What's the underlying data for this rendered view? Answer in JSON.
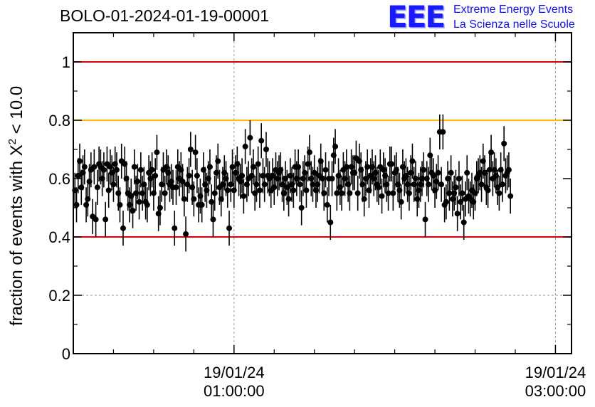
{
  "header": {
    "title": "BOLO-01-2024-01-19-00001"
  },
  "logo": {
    "mark": "EEE",
    "line1": "Extreme Energy Events",
    "line2": "La Scienza nelle Scuole",
    "color": "#1a1aff"
  },
  "chart_data": {
    "type": "scatter",
    "title": "BOLO-01-2024-01-19-00001",
    "ylabel_parts": [
      "fraction of events with X",
      "2",
      " < 10.0"
    ],
    "xlabel": "",
    "x_unit": "hours since 19/01/24 00:00:00",
    "xlim": [
      0,
      3.1
    ],
    "ylim": [
      0,
      1.1
    ],
    "yticks": [
      0,
      0.2,
      0.4,
      0.6,
      0.8,
      1
    ],
    "ytick_labels": [
      "0",
      "0.2",
      "0.4",
      "0.6",
      "0.8",
      "1"
    ],
    "xtick_majors": [
      {
        "x": 1,
        "date": "19/01/24",
        "time": "01:00:00"
      },
      {
        "x": 3,
        "date": "19/01/24",
        "time": "03:00:00"
      }
    ],
    "xtick_minor_step": 0.25,
    "grid": {
      "y": [
        0.2
      ],
      "x": [
        1,
        3
      ],
      "color": "#999999",
      "style": "dotted"
    },
    "reference_lines": [
      {
        "y": 1.0,
        "color": "#dd0000"
      },
      {
        "y": 0.8,
        "color": "#ffbb00"
      },
      {
        "y": 0.4,
        "color": "#dd0000"
      }
    ],
    "series": [
      {
        "marker_color": "#000000",
        "errorbar": 0.06,
        "points": [
          [
            0.01,
            0.56
          ],
          [
            0.02,
            0.51
          ],
          [
            0.03,
            0.61
          ],
          [
            0.04,
            0.66
          ],
          [
            0.05,
            0.57
          ],
          [
            0.06,
            0.62
          ],
          [
            0.07,
            0.64
          ],
          [
            0.08,
            0.51
          ],
          [
            0.09,
            0.53
          ],
          [
            0.1,
            0.59
          ],
          [
            0.11,
            0.63
          ],
          [
            0.12,
            0.47
          ],
          [
            0.13,
            0.64
          ],
          [
            0.14,
            0.46
          ],
          [
            0.15,
            0.57
          ],
          [
            0.16,
            0.65
          ],
          [
            0.17,
            0.64
          ],
          [
            0.18,
            0.6
          ],
          [
            0.19,
            0.63
          ],
          [
            0.2,
            0.46
          ],
          [
            0.21,
            0.65
          ],
          [
            0.22,
            0.56
          ],
          [
            0.23,
            0.64
          ],
          [
            0.24,
            0.62
          ],
          [
            0.25,
            0.58
          ],
          [
            0.26,
            0.65
          ],
          [
            0.27,
            0.63
          ],
          [
            0.28,
            0.55
          ],
          [
            0.29,
            0.51
          ],
          [
            0.3,
            0.66
          ],
          [
            0.31,
            0.43
          ],
          [
            0.32,
            0.65
          ],
          [
            0.33,
            0.6
          ],
          [
            0.34,
            0.55
          ],
          [
            0.35,
            0.51
          ],
          [
            0.36,
            0.54
          ],
          [
            0.37,
            0.49
          ],
          [
            0.38,
            0.64
          ],
          [
            0.39,
            0.55
          ],
          [
            0.4,
            0.59
          ],
          [
            0.41,
            0.52
          ],
          [
            0.42,
            0.63
          ],
          [
            0.43,
            0.55
          ],
          [
            0.44,
            0.58
          ],
          [
            0.45,
            0.52
          ],
          [
            0.46,
            0.51
          ],
          [
            0.47,
            0.62
          ],
          [
            0.48,
            0.6
          ],
          [
            0.49,
            0.63
          ],
          [
            0.5,
            0.55
          ],
          [
            0.51,
            0.61
          ],
          [
            0.52,
            0.69
          ],
          [
            0.53,
            0.48
          ],
          [
            0.54,
            0.5
          ],
          [
            0.55,
            0.58
          ],
          [
            0.56,
            0.63
          ],
          [
            0.57,
            0.55
          ],
          [
            0.58,
            0.64
          ],
          [
            0.59,
            0.62
          ],
          [
            0.6,
            0.58
          ],
          [
            0.61,
            0.59
          ],
          [
            0.62,
            0.57
          ],
          [
            0.63,
            0.43
          ],
          [
            0.64,
            0.57
          ],
          [
            0.65,
            0.64
          ],
          [
            0.66,
            0.6
          ],
          [
            0.67,
            0.63
          ],
          [
            0.68,
            0.59
          ],
          [
            0.69,
            0.53
          ],
          [
            0.7,
            0.41
          ],
          [
            0.71,
            0.58
          ],
          [
            0.72,
            0.61
          ],
          [
            0.73,
            0.7
          ],
          [
            0.74,
            0.57
          ],
          [
            0.75,
            0.53
          ],
          [
            0.76,
            0.69
          ],
          [
            0.77,
            0.61
          ],
          [
            0.78,
            0.51
          ],
          [
            0.79,
            0.54
          ],
          [
            0.8,
            0.51
          ],
          [
            0.81,
            0.63
          ],
          [
            0.82,
            0.58
          ],
          [
            0.83,
            0.56
          ],
          [
            0.84,
            0.6
          ],
          [
            0.85,
            0.64
          ],
          [
            0.86,
            0.52
          ],
          [
            0.87,
            0.46
          ],
          [
            0.88,
            0.55
          ],
          [
            0.89,
            0.62
          ],
          [
            0.9,
            0.66
          ],
          [
            0.91,
            0.57
          ],
          [
            0.92,
            0.53
          ],
          [
            0.93,
            0.58
          ],
          [
            0.94,
            0.62
          ],
          [
            0.95,
            0.6
          ],
          [
            0.96,
            0.56
          ],
          [
            0.97,
            0.43
          ],
          [
            0.98,
            0.58
          ],
          [
            0.99,
            0.64
          ],
          [
            1.0,
            0.56
          ],
          [
            1.01,
            0.62
          ],
          [
            1.02,
            0.65
          ],
          [
            1.03,
            0.6
          ],
          [
            1.04,
            0.59
          ],
          [
            1.05,
            0.61
          ],
          [
            1.06,
            0.54
          ],
          [
            1.07,
            0.71
          ],
          [
            1.08,
            0.58
          ],
          [
            1.09,
            0.6
          ],
          [
            1.1,
            0.74
          ],
          [
            1.11,
            0.61
          ],
          [
            1.12,
            0.64
          ],
          [
            1.13,
            0.55
          ],
          [
            1.14,
            0.58
          ],
          [
            1.15,
            0.65
          ],
          [
            1.16,
            0.56
          ],
          [
            1.17,
            0.73
          ],
          [
            1.18,
            0.61
          ],
          [
            1.19,
            0.58
          ],
          [
            1.2,
            0.7
          ],
          [
            1.21,
            0.61
          ],
          [
            1.22,
            0.6
          ],
          [
            1.23,
            0.56
          ],
          [
            1.24,
            0.61
          ],
          [
            1.25,
            0.57
          ],
          [
            1.26,
            0.63
          ],
          [
            1.27,
            0.6
          ],
          [
            1.28,
            0.62
          ],
          [
            1.29,
            0.63
          ],
          [
            1.3,
            0.58
          ],
          [
            1.31,
            0.55
          ],
          [
            1.32,
            0.6
          ],
          [
            1.33,
            0.57
          ],
          [
            1.34,
            0.53
          ],
          [
            1.35,
            0.61
          ],
          [
            1.36,
            0.58
          ],
          [
            1.37,
            0.56
          ],
          [
            1.38,
            0.64
          ],
          [
            1.39,
            0.6
          ],
          [
            1.4,
            0.64
          ],
          [
            1.41,
            0.58
          ],
          [
            1.42,
            0.5
          ],
          [
            1.43,
            0.6
          ],
          [
            1.44,
            0.62
          ],
          [
            1.45,
            0.56
          ],
          [
            1.46,
            0.65
          ],
          [
            1.47,
            0.69
          ],
          [
            1.48,
            0.6
          ],
          [
            1.49,
            0.58
          ],
          [
            1.5,
            0.62
          ],
          [
            1.51,
            0.56
          ],
          [
            1.52,
            0.58
          ],
          [
            1.53,
            0.61
          ],
          [
            1.54,
            0.66
          ],
          [
            1.55,
            0.6
          ],
          [
            1.56,
            0.55
          ],
          [
            1.57,
            0.63
          ],
          [
            1.58,
            0.51
          ],
          [
            1.59,
            0.6
          ],
          [
            1.6,
            0.45
          ],
          [
            1.61,
            0.6
          ],
          [
            1.62,
            0.68
          ],
          [
            1.63,
            0.71
          ],
          [
            1.64,
            0.55
          ],
          [
            1.65,
            0.61
          ],
          [
            1.66,
            0.57
          ],
          [
            1.67,
            0.55
          ],
          [
            1.68,
            0.63
          ],
          [
            1.69,
            0.6
          ],
          [
            1.7,
            0.64
          ],
          [
            1.71,
            0.58
          ],
          [
            1.72,
            0.55
          ],
          [
            1.73,
            0.64
          ],
          [
            1.74,
            0.62
          ],
          [
            1.75,
            0.62
          ],
          [
            1.76,
            0.67
          ],
          [
            1.77,
            0.55
          ],
          [
            1.78,
            0.66
          ],
          [
            1.79,
            0.63
          ],
          [
            1.8,
            0.58
          ],
          [
            1.81,
            0.53
          ],
          [
            1.82,
            0.6
          ],
          [
            1.83,
            0.64
          ],
          [
            1.84,
            0.56
          ],
          [
            1.85,
            0.61
          ],
          [
            1.86,
            0.64
          ],
          [
            1.87,
            0.6
          ],
          [
            1.88,
            0.62
          ],
          [
            1.89,
            0.58
          ],
          [
            1.9,
            0.57
          ],
          [
            1.91,
            0.64
          ],
          [
            1.92,
            0.54
          ],
          [
            1.93,
            0.63
          ],
          [
            1.94,
            0.61
          ],
          [
            1.95,
            0.58
          ],
          [
            1.96,
            0.55
          ],
          [
            1.97,
            0.65
          ],
          [
            1.98,
            0.65
          ],
          [
            1.99,
            0.55
          ],
          [
            2.0,
            0.62
          ],
          [
            2.01,
            0.63
          ],
          [
            2.02,
            0.58
          ],
          [
            2.03,
            0.56
          ],
          [
            2.04,
            0.52
          ],
          [
            2.05,
            0.64
          ],
          [
            2.06,
            0.6
          ],
          [
            2.07,
            0.61
          ],
          [
            2.08,
            0.58
          ],
          [
            2.09,
            0.55
          ],
          [
            2.1,
            0.62
          ],
          [
            2.11,
            0.66
          ],
          [
            2.12,
            0.58
          ],
          [
            2.13,
            0.6
          ],
          [
            2.14,
            0.53
          ],
          [
            2.15,
            0.56
          ],
          [
            2.16,
            0.58
          ],
          [
            2.17,
            0.6
          ],
          [
            2.18,
            0.63
          ],
          [
            2.19,
            0.46
          ],
          [
            2.2,
            0.6
          ],
          [
            2.21,
            0.58
          ],
          [
            2.22,
            0.68
          ],
          [
            2.23,
            0.62
          ],
          [
            2.24,
            0.61
          ],
          [
            2.25,
            0.56
          ],
          [
            2.26,
            0.59
          ],
          [
            2.27,
            0.62
          ],
          [
            2.28,
            0.76
          ],
          [
            2.29,
            0.58
          ],
          [
            2.3,
            0.76
          ],
          [
            2.31,
            0.51
          ],
          [
            2.32,
            0.52
          ],
          [
            2.33,
            0.6
          ],
          [
            2.34,
            0.55
          ],
          [
            2.35,
            0.62
          ],
          [
            2.36,
            0.53
          ],
          [
            2.37,
            0.55
          ],
          [
            2.38,
            0.57
          ],
          [
            2.39,
            0.48
          ],
          [
            2.4,
            0.6
          ],
          [
            2.41,
            0.52
          ],
          [
            2.42,
            0.55
          ],
          [
            2.43,
            0.45
          ],
          [
            2.44,
            0.53
          ],
          [
            2.45,
            0.62
          ],
          [
            2.46,
            0.54
          ],
          [
            2.47,
            0.53
          ],
          [
            2.48,
            0.56
          ],
          [
            2.49,
            0.52
          ],
          [
            2.5,
            0.55
          ],
          [
            2.51,
            0.6
          ],
          [
            2.52,
            0.61
          ],
          [
            2.53,
            0.62
          ],
          [
            2.54,
            0.58
          ],
          [
            2.55,
            0.66
          ],
          [
            2.56,
            0.62
          ],
          [
            2.57,
            0.57
          ],
          [
            2.58,
            0.56
          ],
          [
            2.59,
            0.63
          ],
          [
            2.6,
            0.69
          ],
          [
            2.61,
            0.6
          ],
          [
            2.62,
            0.63
          ],
          [
            2.63,
            0.61
          ],
          [
            2.64,
            0.57
          ],
          [
            2.65,
            0.55
          ],
          [
            2.66,
            0.63
          ],
          [
            2.67,
            0.58
          ],
          [
            2.68,
            0.72
          ],
          [
            2.69,
            0.61
          ],
          [
            2.7,
            0.62
          ],
          [
            2.71,
            0.63
          ],
          [
            2.72,
            0.54
          ]
        ]
      }
    ]
  }
}
